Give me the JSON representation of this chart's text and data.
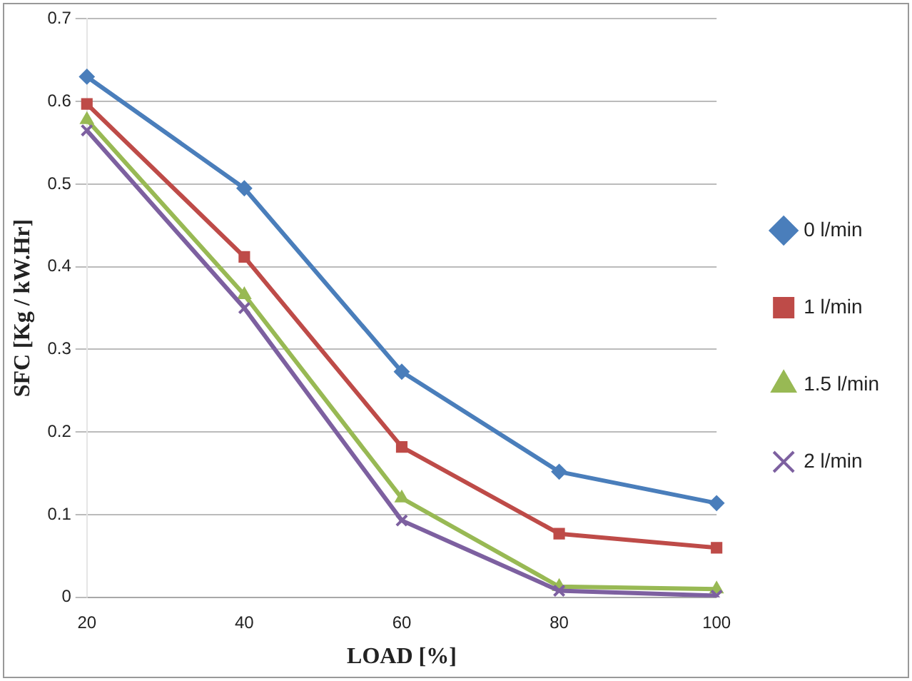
{
  "chart_data": {
    "type": "line",
    "xlabel": "LOAD [%]",
    "ylabel": "SFC [Kg / kW.Hr]",
    "categories": [
      "20",
      "40",
      "60",
      "80",
      "100"
    ],
    "series": [
      {
        "name": "0 l/min",
        "color": "#4a7ebb",
        "marker": "diamond",
        "values": [
          0.63,
          0.495,
          0.273,
          0.152,
          0.114
        ]
      },
      {
        "name": "1 l/min",
        "color": "#be4b48",
        "marker": "square",
        "values": [
          0.597,
          0.412,
          0.182,
          0.077,
          0.06
        ]
      },
      {
        "name": "1.5 l/min",
        "color": "#98b954",
        "marker": "triangle",
        "values": [
          0.578,
          0.366,
          0.12,
          0.013,
          0.01
        ]
      },
      {
        "name": "2 l/min",
        "color": "#7d60a0",
        "marker": "cross",
        "values": [
          0.565,
          0.35,
          0.093,
          0.008,
          0.002
        ]
      }
    ],
    "ylim": [
      0,
      0.7
    ],
    "yticks": [
      0,
      0.1,
      0.2,
      0.3,
      0.4,
      0.5,
      0.6,
      0.7
    ],
    "grid": "y",
    "legend": "right"
  }
}
